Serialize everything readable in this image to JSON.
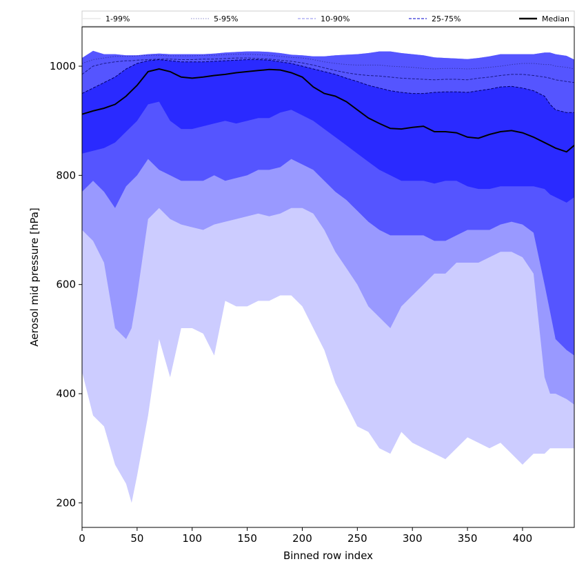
{
  "chart_data": {
    "type": "area",
    "title": "",
    "xlabel": "Binned row index",
    "ylabel": "Aerosol mid pressure [hPa]",
    "xlim": [
      0,
      447
    ],
    "ylim": [
      155,
      1072
    ],
    "xticks": [
      0,
      50,
      100,
      150,
      200,
      250,
      300,
      350,
      400
    ],
    "yticks": [
      200,
      400,
      600,
      800,
      1000
    ],
    "legend_position": "top",
    "x": [
      0,
      10,
      20,
      30,
      40,
      45,
      50,
      60,
      70,
      80,
      90,
      100,
      110,
      120,
      130,
      140,
      150,
      160,
      170,
      180,
      190,
      200,
      210,
      220,
      230,
      240,
      250,
      260,
      270,
      280,
      290,
      300,
      310,
      320,
      330,
      340,
      350,
      360,
      370,
      380,
      390,
      400,
      410,
      420,
      425,
      430,
      440,
      447
    ],
    "bands": [
      {
        "name": "1-99%",
        "color": "#ccccff",
        "lower": [
          440,
          360,
          340,
          270,
          235,
          200,
          250,
          360,
          500,
          430,
          520,
          520,
          510,
          470,
          570,
          560,
          560,
          570,
          570,
          580,
          580,
          560,
          520,
          480,
          420,
          380,
          340,
          330,
          300,
          290,
          330,
          310,
          300,
          290,
          280,
          300,
          320,
          310,
          300,
          310,
          290,
          270,
          290,
          290,
          300,
          300,
          300,
          300
        ],
        "upper": [
          1015,
          1028,
          1022,
          1022,
          1020,
          1020,
          1020,
          1022,
          1023,
          1022,
          1022,
          1022,
          1022,
          1023,
          1025,
          1026,
          1027,
          1027,
          1026,
          1024,
          1021,
          1020,
          1018,
          1018,
          1020,
          1021,
          1022,
          1024,
          1027,
          1027,
          1024,
          1022,
          1020,
          1016,
          1015,
          1014,
          1013,
          1015,
          1018,
          1022,
          1022,
          1022,
          1022,
          1025,
          1025,
          1022,
          1019,
          1012
        ]
      },
      {
        "name": "5-95%",
        "color": "#9999ff",
        "lower": [
          700,
          680,
          640,
          520,
          500,
          520,
          580,
          720,
          740,
          720,
          710,
          705,
          700,
          710,
          715,
          720,
          725,
          730,
          725,
          730,
          740,
          740,
          730,
          700,
          660,
          630,
          600,
          560,
          540,
          520,
          560,
          580,
          600,
          620,
          620,
          640,
          640,
          640,
          650,
          660,
          660,
          650,
          620,
          430,
          400,
          400,
          390,
          380
        ]
      },
      {
        "name": "10-90%",
        "color": "#5555ff",
        "lower": [
          770,
          790,
          770,
          740,
          780,
          790,
          800,
          830,
          810,
          800,
          790,
          790,
          790,
          800,
          790,
          795,
          800,
          810,
          810,
          815,
          830,
          820,
          810,
          790,
          770,
          755,
          735,
          715,
          700,
          690,
          690,
          690,
          690,
          680,
          680,
          690,
          700,
          700,
          700,
          710,
          715,
          710,
          695,
          600,
          550,
          500,
          480,
          470
        ]
      },
      {
        "name": "25-75%",
        "color": "#2a2aff",
        "lower": [
          840,
          845,
          850,
          860,
          880,
          890,
          900,
          930,
          935,
          900,
          885,
          885,
          890,
          895,
          900,
          895,
          900,
          905,
          905,
          915,
          920,
          910,
          900,
          885,
          870,
          855,
          840,
          825,
          810,
          800,
          790,
          790,
          790,
          785,
          790,
          790,
          780,
          775,
          775,
          780,
          780,
          780,
          780,
          775,
          765,
          760,
          750,
          760
        ],
        "upper": [
          950,
          960,
          970,
          980,
          995,
          1000,
          1005,
          1010,
          1012,
          1010,
          1008,
          1008,
          1008,
          1009,
          1010,
          1011,
          1012,
          1012,
          1011,
          1008,
          1005,
          1000,
          995,
          990,
          985,
          978,
          972,
          965,
          960,
          955,
          952,
          950,
          950,
          952,
          953,
          953,
          952,
          955,
          958,
          962,
          963,
          960,
          955,
          945,
          930,
          920,
          915,
          915
        ]
      }
    ],
    "percentile_lines": [
      {
        "name": "5-95%",
        "color": "#3333aa",
        "style": "dotted",
        "values": [
          1005,
          1012,
          1015,
          1018,
          1018,
          1018,
          1019,
          1020,
          1020,
          1019,
          1019,
          1019,
          1020,
          1020,
          1021,
          1022,
          1022,
          1021,
          1020,
          1018,
          1016,
          1015,
          1012,
          1008,
          1005,
          1003,
          1002,
          1002,
          1002,
          1000,
          999,
          998,
          996,
          995,
          996,
          996,
          995,
          996,
          998,
          1000,
          1003,
          1005,
          1005,
          1003,
          1003,
          1000,
          998,
          995
        ]
      },
      {
        "name": "10-90%",
        "color": "#1a1a88",
        "style": "dashed",
        "values": [
          985,
          1000,
          1005,
          1008,
          1010,
          1010,
          1011,
          1012,
          1013,
          1013,
          1012,
          1012,
          1013,
          1013,
          1014,
          1015,
          1015,
          1014,
          1013,
          1011,
          1009,
          1006,
          1002,
          997,
          992,
          988,
          985,
          983,
          982,
          980,
          978,
          977,
          976,
          975,
          976,
          976,
          975,
          978,
          980,
          983,
          985,
          985,
          983,
          980,
          978,
          975,
          972,
          970
        ]
      },
      {
        "name": "25-75%",
        "color": "#000066",
        "style": "dashed",
        "values": [
          950,
          960,
          970,
          980,
          995,
          1000,
          1005,
          1010,
          1012,
          1010,
          1008,
          1008,
          1008,
          1009,
          1010,
          1011,
          1012,
          1012,
          1011,
          1008,
          1005,
          1000,
          995,
          990,
          985,
          978,
          972,
          965,
          960,
          955,
          952,
          950,
          950,
          952,
          953,
          953,
          952,
          955,
          958,
          962,
          963,
          960,
          955,
          945,
          930,
          920,
          915,
          915
        ]
      }
    ],
    "series": [
      {
        "name": "Median",
        "color": "#000000",
        "values": [
          912,
          918,
          923,
          930,
          945,
          955,
          965,
          990,
          995,
          990,
          980,
          978,
          980,
          983,
          985,
          988,
          990,
          992,
          994,
          993,
          988,
          980,
          962,
          950,
          945,
          935,
          920,
          905,
          895,
          886,
          885,
          888,
          890,
          880,
          880,
          878,
          870,
          868,
          875,
          880,
          882,
          878,
          870,
          860,
          855,
          850,
          843,
          855
        ]
      }
    ],
    "legend": [
      "1-99%",
      "5-95%",
      "10-90%",
      "25-75%",
      "Median"
    ]
  }
}
